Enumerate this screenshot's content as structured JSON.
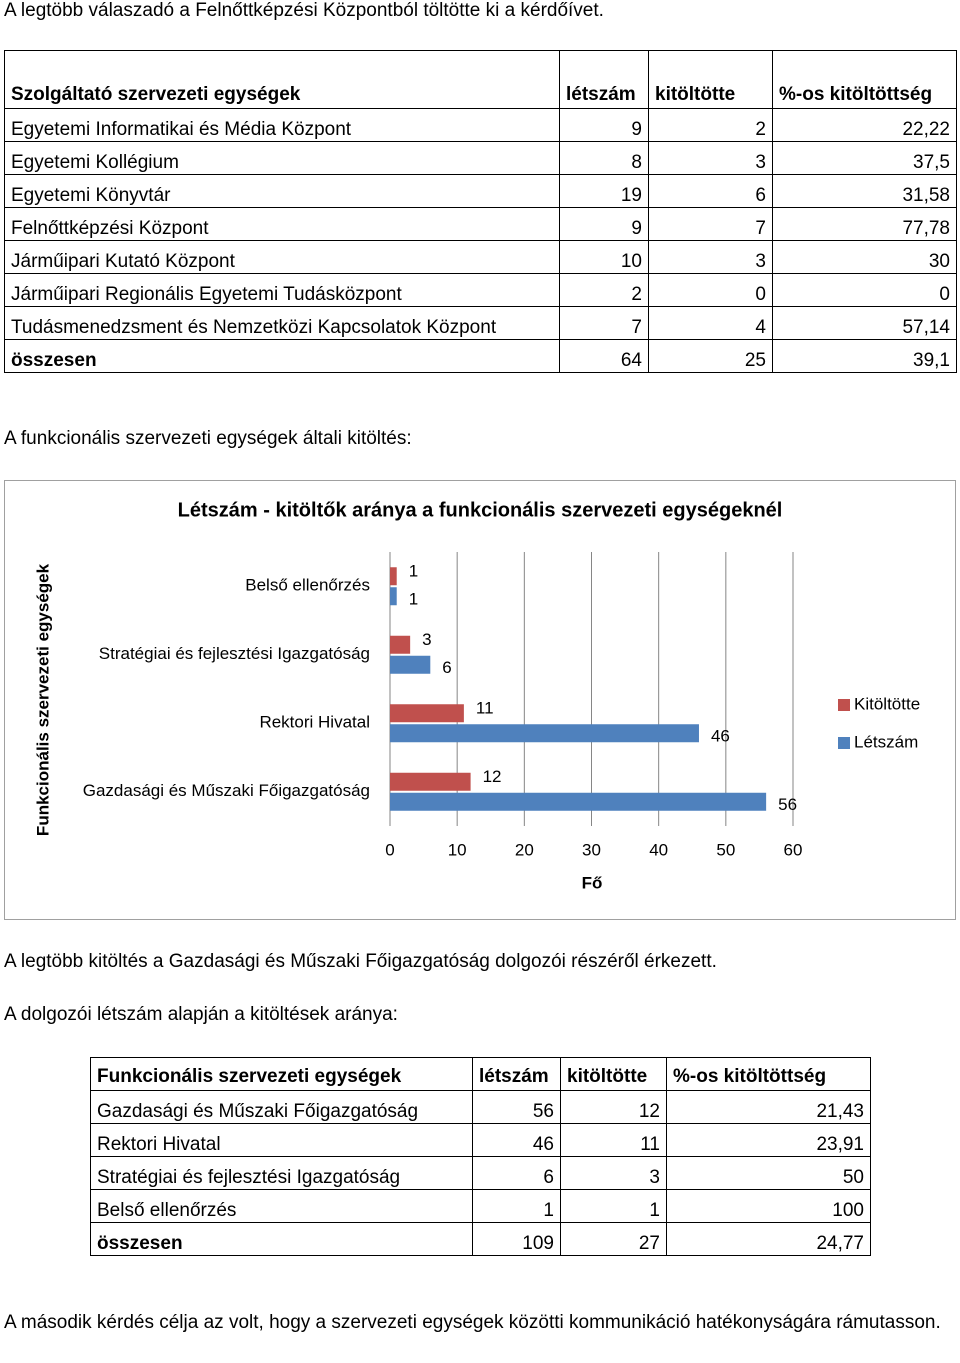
{
  "intro": "A legtöbb válaszadó a Felnőttképzési Központból töltötte ki a kérdőívet.",
  "table1": {
    "header": [
      "Szolgáltató szervezeti egységek",
      "létszám",
      "kitöltötte",
      "%-os kitöltöttség"
    ],
    "rows": [
      [
        "Egyetemi Informatikai és Média Központ",
        "9",
        "2",
        "22,22"
      ],
      [
        "Egyetemi Kollégium",
        "8",
        "3",
        "37,5"
      ],
      [
        "Egyetemi Könyvtár",
        "19",
        "6",
        "31,58"
      ],
      [
        "Felnőttképzési Központ",
        "9",
        "7",
        "77,78"
      ],
      [
        "Járműipari Kutató Központ",
        "10",
        "3",
        "30"
      ],
      [
        "Járműipari Regionális Egyetemi Tudásközpont",
        "2",
        "0",
        "0"
      ],
      [
        "Tudásmenedzsment és Nemzetközi Kapcsolatok Központ",
        "7",
        "4",
        "57,14"
      ],
      [
        "összesen",
        "64",
        "25",
        "39,1"
      ]
    ]
  },
  "para2": "A funkcionális szervezeti egységek általi kitöltés:",
  "chart_data": {
    "type": "bar",
    "orientation": "horizontal",
    "title": "Létszám - kitöltők aránya a funkcionális szervezeti egységeknél",
    "y_label": "Funkcionális szervezeti egységek",
    "x_label": "Fő",
    "categories": [
      "Belső ellenőrzés",
      "Stratégiai és fejlesztési Igazgatóság",
      "Rektori Hivatal",
      "Gazdasági és Műszaki Főigazgatóság"
    ],
    "series": [
      {
        "name": "Kitöltötte",
        "color": "#c0504d",
        "values": [
          1,
          3,
          11,
          12
        ]
      },
      {
        "name": "Létszám",
        "color": "#4f81bd",
        "values": [
          1,
          6,
          46,
          56
        ]
      }
    ],
    "xlim": [
      0,
      60
    ],
    "xticks": [
      0,
      10,
      20,
      30,
      40,
      50,
      60
    ],
    "grid": true,
    "legend": "right"
  },
  "para3": "A legtöbb kitöltés a Gazdasági és Műszaki Főigazgatóság dolgozói részéről érkezett.",
  "para4": "A dolgozói létszám alapján a kitöltések aránya:",
  "table2": {
    "header": [
      "Funkcionális szervezeti egységek",
      "létszám",
      "kitöltötte",
      "%-os kitöltöttség"
    ],
    "rows": [
      [
        "Gazdasági és Műszaki Főigazgatóság",
        "56",
        "12",
        "21,43"
      ],
      [
        "Rektori Hivatal",
        "46",
        "11",
        "23,91"
      ],
      [
        "Stratégiai és fejlesztési Igazgatóság",
        "6",
        "3",
        "50"
      ],
      [
        "Belső ellenőrzés",
        "1",
        "1",
        "100"
      ],
      [
        "összesen",
        "109",
        "27",
        "24,77"
      ]
    ]
  },
  "para5": "A második kérdés célja az volt, hogy a szervezeti egységek közötti kommunikáció hatékonyságára rámutasson."
}
